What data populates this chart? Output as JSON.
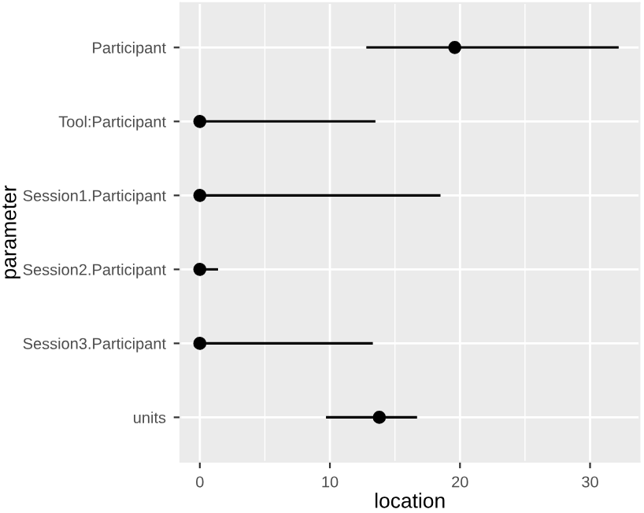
{
  "chart_data": {
    "type": "scatter",
    "orientation": "horizontal",
    "xlabel": "location",
    "ylabel": "parameter",
    "categories": [
      "Participant",
      "Tool:Participant",
      "Session1.Participant",
      "Session2.Participant",
      "Session3.Participant",
      "units"
    ],
    "series": [
      {
        "color": "#000000",
        "values": [
          19.6,
          0,
          0,
          0,
          0,
          13.8
        ],
        "errors": [
          [
            12.8,
            32.2
          ],
          [
            0,
            13.5
          ],
          [
            0,
            18.5
          ],
          [
            0,
            1.4
          ],
          [
            0,
            13.3
          ],
          [
            9.7,
            16.7
          ]
        ]
      }
    ],
    "xlim": [
      -1.5,
      33.8
    ],
    "xticks": [
      0,
      {
        "value": 5,
        "label": null
      },
      10,
      {
        "value": 15,
        "label": null
      },
      20,
      {
        "value": 25,
        "label": null
      },
      30
    ],
    "grid": true,
    "marker": "circle"
  }
}
